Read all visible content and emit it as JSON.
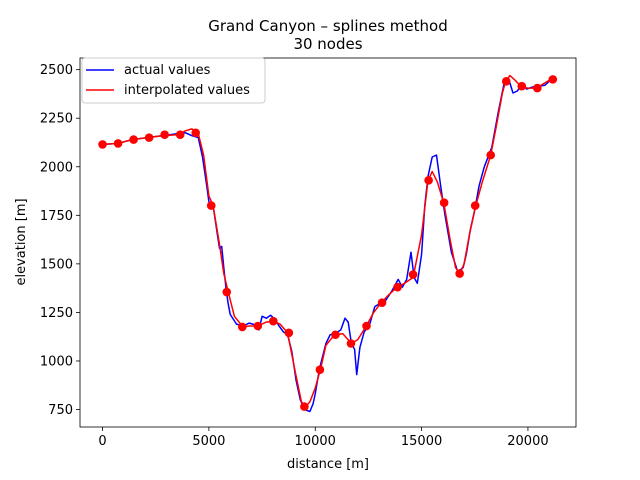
{
  "chart_data": {
    "type": "line",
    "title": "Grand Canyon – splines method",
    "subtitle": "30 nodes",
    "xlabel": "distance [m]",
    "ylabel": "elevation [m]",
    "xlim": [
      -1060,
      22260
    ],
    "ylim": [
      660,
      2560
    ],
    "x_ticks": [
      0,
      5000,
      10000,
      15000,
      20000
    ],
    "x_tick_labels": [
      "0",
      "5000",
      "10000",
      "15000",
      "20000"
    ],
    "y_ticks": [
      750,
      1000,
      1250,
      1500,
      1750,
      2000,
      2250,
      2500
    ],
    "y_tick_labels": [
      "750",
      "1000",
      "1250",
      "1500",
      "1750",
      "2000",
      "2250",
      "2500"
    ],
    "grid": false,
    "legend": {
      "placement": "upper-left"
    },
    "colors": {
      "actual": "#0000ff",
      "interpolated": "#ff0000"
    },
    "series": [
      {
        "name": "actual values",
        "color": "#0000ff",
        "points": [
          [
            0,
            2115
          ],
          [
            700,
            2120
          ],
          [
            1400,
            2140
          ],
          [
            2100,
            2150
          ],
          [
            2800,
            2160
          ],
          [
            3500,
            2170
          ],
          [
            3900,
            2175
          ],
          [
            4200,
            2160
          ],
          [
            4500,
            2150
          ],
          [
            4700,
            2050
          ],
          [
            4900,
            1900
          ],
          [
            5000,
            1820
          ],
          [
            5200,
            1800
          ],
          [
            5400,
            1650
          ],
          [
            5500,
            1580
          ],
          [
            5600,
            1590
          ],
          [
            5700,
            1480
          ],
          [
            5800,
            1380
          ],
          [
            5900,
            1300
          ],
          [
            6000,
            1240
          ],
          [
            6300,
            1190
          ],
          [
            6600,
            1180
          ],
          [
            6900,
            1195
          ],
          [
            7200,
            1185
          ],
          [
            7350,
            1160
          ],
          [
            7500,
            1230
          ],
          [
            7700,
            1220
          ],
          [
            7900,
            1235
          ],
          [
            8100,
            1215
          ],
          [
            8300,
            1180
          ],
          [
            8500,
            1150
          ],
          [
            8700,
            1135
          ],
          [
            8900,
            1050
          ],
          [
            9100,
            900
          ],
          [
            9300,
            800
          ],
          [
            9500,
            750
          ],
          [
            9750,
            740
          ],
          [
            9900,
            780
          ],
          [
            10000,
            830
          ],
          [
            10200,
            960
          ],
          [
            10500,
            1090
          ],
          [
            10700,
            1135
          ],
          [
            11000,
            1145
          ],
          [
            11200,
            1160
          ],
          [
            11400,
            1220
          ],
          [
            11550,
            1200
          ],
          [
            11700,
            1090
          ],
          [
            11850,
            1060
          ],
          [
            11950,
            930
          ],
          [
            12100,
            1070
          ],
          [
            12300,
            1150
          ],
          [
            12550,
            1185
          ],
          [
            12800,
            1280
          ],
          [
            13100,
            1300
          ],
          [
            13300,
            1310
          ],
          [
            13600,
            1360
          ],
          [
            13900,
            1420
          ],
          [
            14100,
            1380
          ],
          [
            14300,
            1420
          ],
          [
            14500,
            1560
          ],
          [
            14650,
            1430
          ],
          [
            14800,
            1400
          ],
          [
            15000,
            1550
          ],
          [
            15150,
            1800
          ],
          [
            15300,
            1950
          ],
          [
            15500,
            2050
          ],
          [
            15700,
            2060
          ],
          [
            15900,
            1900
          ],
          [
            16100,
            1750
          ],
          [
            16400,
            1560
          ],
          [
            16700,
            1460
          ],
          [
            16950,
            1480
          ],
          [
            17100,
            1550
          ],
          [
            17300,
            1680
          ],
          [
            17500,
            1780
          ],
          [
            17700,
            1900
          ],
          [
            17950,
            2000
          ],
          [
            18300,
            2100
          ],
          [
            18600,
            2280
          ],
          [
            18900,
            2440
          ],
          [
            19100,
            2450
          ],
          [
            19300,
            2380
          ],
          [
            19500,
            2390
          ],
          [
            19700,
            2420
          ],
          [
            19950,
            2400
          ],
          [
            20200,
            2410
          ],
          [
            20500,
            2415
          ],
          [
            20800,
            2420
          ],
          [
            21000,
            2440
          ],
          [
            21200,
            2450
          ]
        ]
      },
      {
        "name": "interpolated values",
        "color": "#ff0000",
        "points": [
          [
            0,
            2115
          ],
          [
            700,
            2120
          ],
          [
            1400,
            2140
          ],
          [
            2100,
            2150
          ],
          [
            2800,
            2160
          ],
          [
            3500,
            2165
          ],
          [
            3900,
            2185
          ],
          [
            4200,
            2195
          ],
          [
            4500,
            2170
          ],
          [
            4750,
            2060
          ],
          [
            5000,
            1850
          ],
          [
            5200,
            1800
          ],
          [
            5500,
            1600
          ],
          [
            5700,
            1450
          ],
          [
            5900,
            1360
          ],
          [
            6200,
            1230
          ],
          [
            6600,
            1175
          ],
          [
            6900,
            1180
          ],
          [
            7300,
            1180
          ],
          [
            7700,
            1200
          ],
          [
            8000,
            1205
          ],
          [
            8350,
            1190
          ],
          [
            8700,
            1145
          ],
          [
            9050,
            950
          ],
          [
            9350,
            790
          ],
          [
            9550,
            765
          ],
          [
            9750,
            790
          ],
          [
            10000,
            860
          ],
          [
            10250,
            960
          ],
          [
            10500,
            1080
          ],
          [
            10900,
            1135
          ],
          [
            11300,
            1140
          ],
          [
            11700,
            1090
          ],
          [
            12000,
            1110
          ],
          [
            12400,
            1180
          ],
          [
            12750,
            1250
          ],
          [
            13100,
            1300
          ],
          [
            13450,
            1340
          ],
          [
            13850,
            1380
          ],
          [
            14200,
            1400
          ],
          [
            14600,
            1430
          ],
          [
            15000,
            1650
          ],
          [
            15300,
            1930
          ],
          [
            15500,
            1975
          ],
          [
            15750,
            1920
          ],
          [
            16050,
            1810
          ],
          [
            16350,
            1620
          ],
          [
            16600,
            1480
          ],
          [
            16800,
            1450
          ],
          [
            17000,
            1500
          ],
          [
            17250,
            1650
          ],
          [
            17550,
            1800
          ],
          [
            17850,
            1920
          ],
          [
            18250,
            2060
          ],
          [
            18500,
            2200
          ],
          [
            18800,
            2380
          ],
          [
            18950,
            2440
          ],
          [
            19150,
            2470
          ],
          [
            19400,
            2445
          ],
          [
            19700,
            2410
          ],
          [
            20000,
            2405
          ],
          [
            20400,
            2405
          ],
          [
            20700,
            2425
          ],
          [
            21000,
            2445
          ],
          [
            21200,
            2450
          ]
        ]
      }
    ],
    "nodes": {
      "x": [
        0,
        730,
        1460,
        2190,
        2920,
        3650,
        4380,
        5110,
        5840,
        6570,
        7300,
        8030,
        8760,
        9490,
        10220,
        10950,
        11680,
        12410,
        13140,
        13870,
        14600,
        15330,
        16060,
        16790,
        17520,
        18250,
        18980,
        19710,
        20440,
        21170
      ],
      "y": [
        2115,
        2120,
        2140,
        2150,
        2165,
        2165,
        2175,
        1800,
        1355,
        1175,
        1180,
        1205,
        1145,
        765,
        955,
        1135,
        1090,
        1180,
        1300,
        1380,
        1445,
        1930,
        1815,
        1450,
        1800,
        2060,
        2440,
        2415,
        2405,
        2450
      ]
    }
  }
}
